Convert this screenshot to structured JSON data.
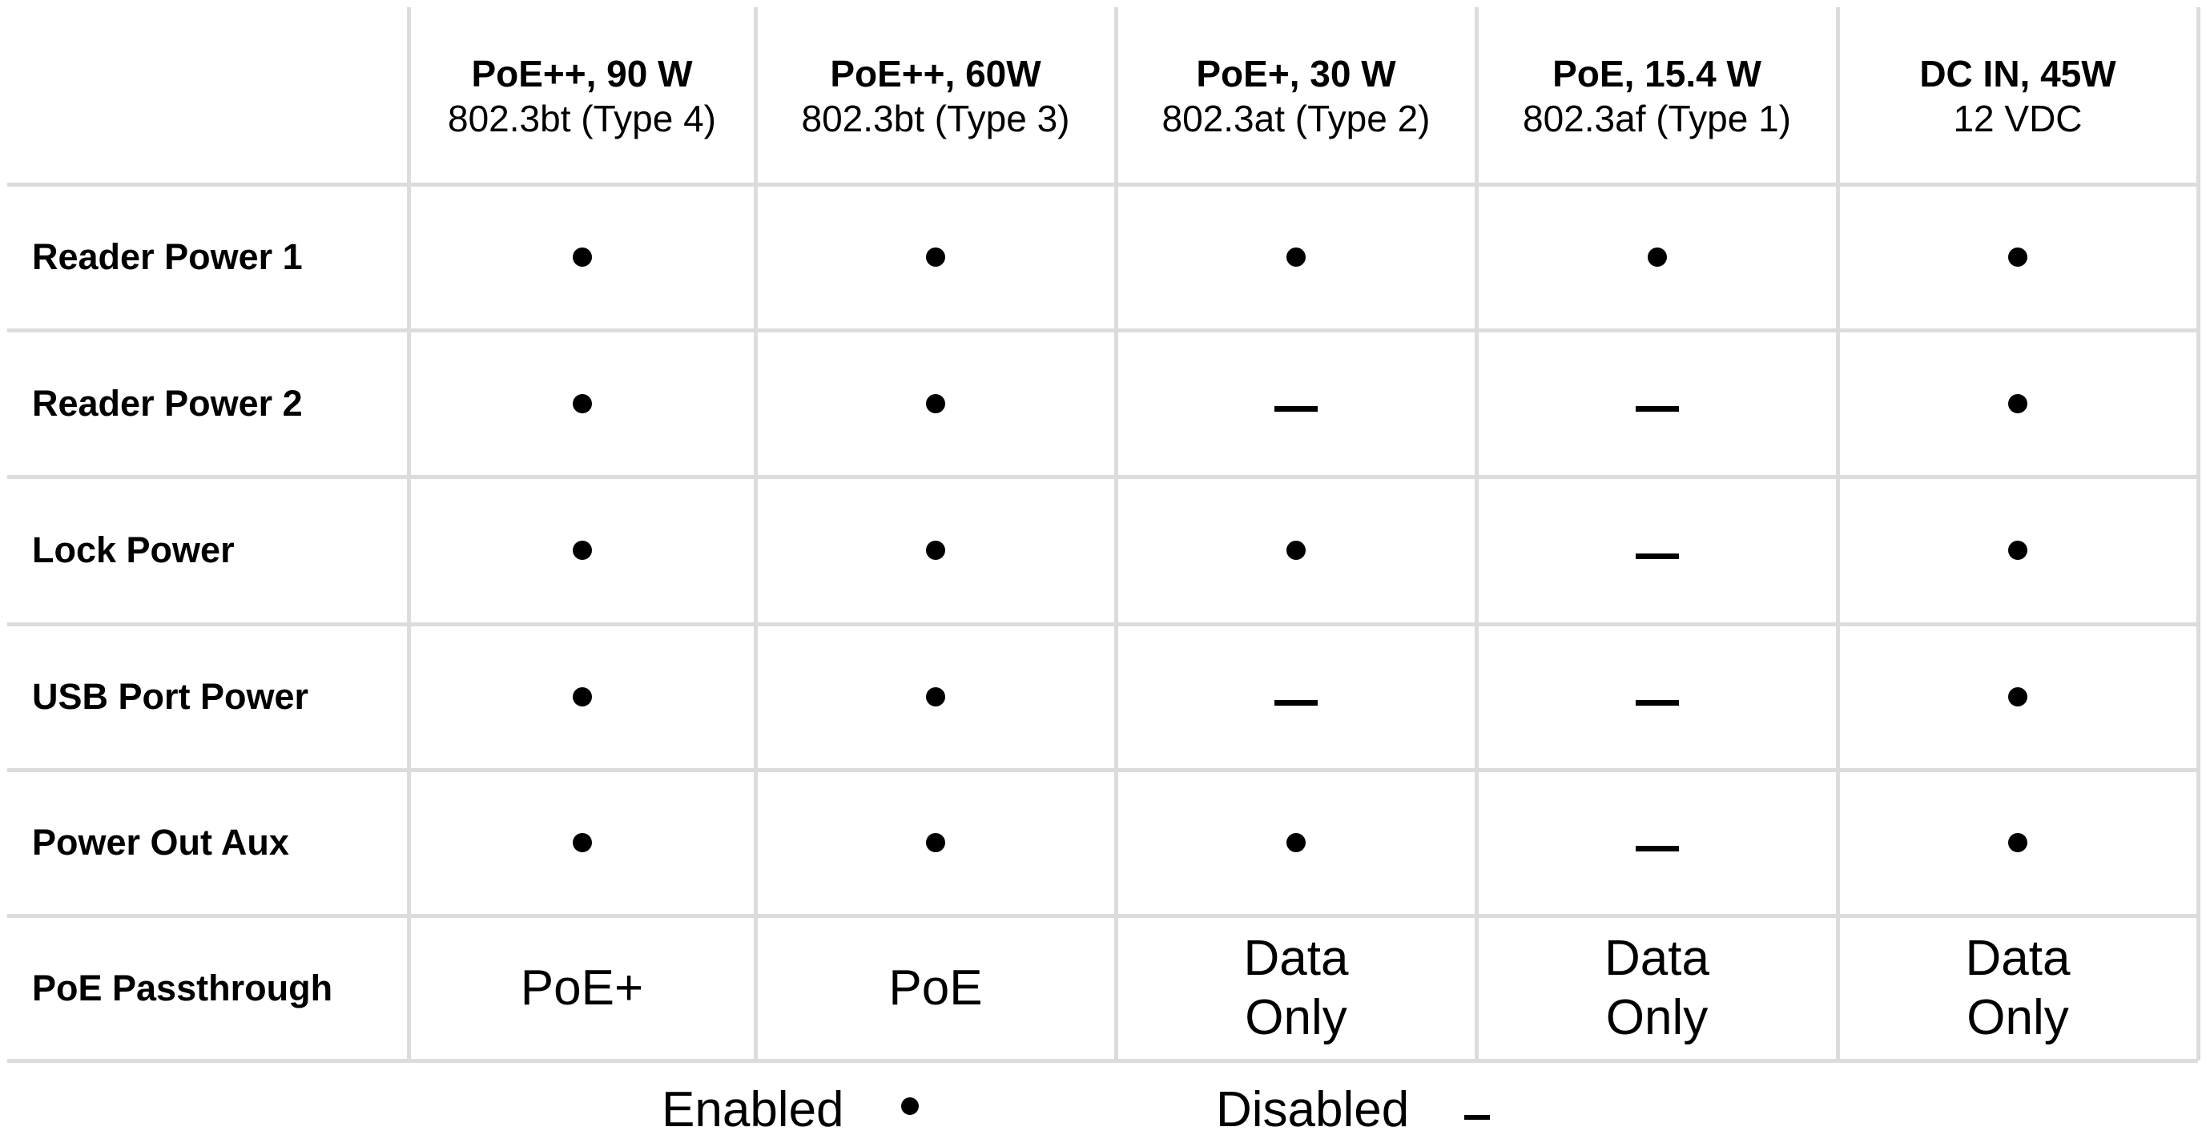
{
  "columns": [
    {
      "title": "PoE++, 90 W",
      "subtitle": "802.3bt (Type 4)"
    },
    {
      "title": "PoE++, 60W",
      "subtitle": "802.3bt (Type 3)"
    },
    {
      "title": "PoE+, 30 W",
      "subtitle": "802.3at (Type 2)"
    },
    {
      "title": "PoE, 15.4 W",
      "subtitle": "802.3af (Type 1)"
    },
    {
      "title": "DC IN, 45W",
      "subtitle": "12 VDC"
    }
  ],
  "rows": [
    {
      "label": "Reader Power 1",
      "cells": [
        true,
        true,
        true,
        true,
        true
      ]
    },
    {
      "label": "Reader Power 2",
      "cells": [
        true,
        true,
        false,
        false,
        true
      ]
    },
    {
      "label": "Lock Power",
      "cells": [
        true,
        true,
        true,
        false,
        true
      ]
    },
    {
      "label": "USB Port Power",
      "cells": [
        true,
        true,
        false,
        false,
        true
      ]
    },
    {
      "label": "Power Out Aux",
      "cells": [
        true,
        true,
        true,
        false,
        true
      ]
    },
    {
      "label": "PoE Passthrough",
      "cells": [
        "PoE+",
        "PoE",
        "Data Only",
        "Data Only",
        "Data Only"
      ]
    }
  ],
  "legend": {
    "enabled": "Enabled",
    "disabled": "Disabled"
  }
}
